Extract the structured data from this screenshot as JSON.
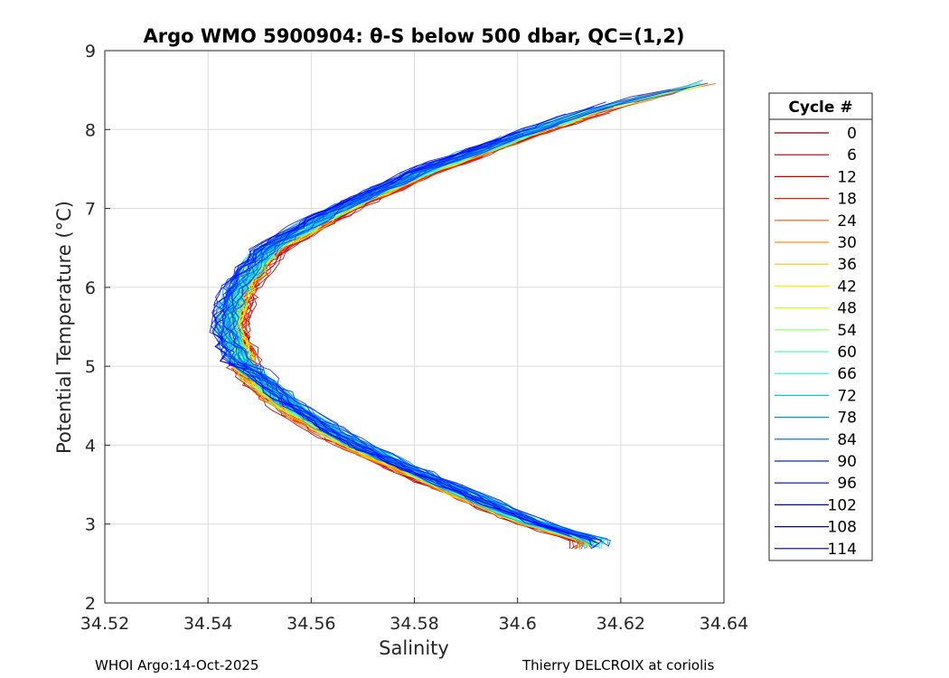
{
  "chart_data": {
    "type": "line",
    "title": "Argo WMO 5900904: θ-S below 500 dbar,  QC=(1,2)",
    "xlabel": "Salinity",
    "ylabel": "Potential Temperature (°C)",
    "xlim": [
      34.52,
      34.64
    ],
    "ylim": [
      2,
      9
    ],
    "x_ticks": [
      "34.52",
      "34.54",
      "34.56",
      "34.58",
      "34.6",
      "34.62",
      "34.64"
    ],
    "y_ticks": [
      "2",
      "3",
      "4",
      "5",
      "6",
      "7",
      "8",
      "9"
    ],
    "grid": true,
    "legend_position": "right-outside",
    "legend_title": "Cycle #",
    "legend_entries": [
      "0",
      "6",
      "12",
      "18",
      "24",
      "30",
      "36",
      "42",
      "48",
      "54",
      "60",
      "66",
      "72",
      "78",
      "84",
      "90",
      "96",
      "102",
      "108",
      "114"
    ],
    "legend_colors": [
      "#800000",
      "#a50000",
      "#cc0000",
      "#e32000",
      "#f55a00",
      "#ff8f00",
      "#ffc400",
      "#fff000",
      "#c8ff2f",
      "#8cff6a",
      "#55ffa5",
      "#20f0dc",
      "#00c8ff",
      "#0090ff",
      "#005aff",
      "#0024ff",
      "#0000dc",
      "#0000b4",
      "#00008c",
      "#000070"
    ],
    "reference_curve": [
      {
        "t": 2.8,
        "s": 34.614
      },
      {
        "t": 3.0,
        "s": 34.603
      },
      {
        "t": 3.5,
        "s": 34.585
      },
      {
        "t": 4.0,
        "s": 34.568
      },
      {
        "t": 4.3,
        "s": 34.56
      },
      {
        "t": 4.6,
        "s": 34.553
      },
      {
        "t": 5.0,
        "s": 34.547
      },
      {
        "t": 5.5,
        "s": 34.544
      },
      {
        "t": 6.0,
        "s": 34.546
      },
      {
        "t": 6.5,
        "s": 34.552
      },
      {
        "t": 7.0,
        "s": 34.566
      },
      {
        "t": 7.5,
        "s": 34.583
      },
      {
        "t": 8.0,
        "s": 34.604
      },
      {
        "t": 8.3,
        "s": 34.618
      },
      {
        "t": 8.6,
        "s": 34.637
      }
    ],
    "profile_count": 120
  },
  "footer": {
    "left": "WHOI Argo:14-Oct-2025",
    "right": "Thierry DELCROIX at coriolis"
  }
}
